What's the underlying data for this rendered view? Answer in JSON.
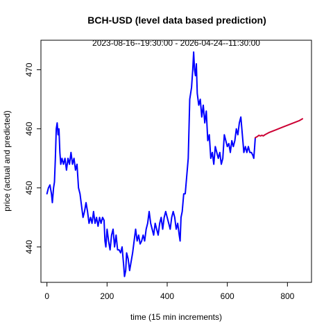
{
  "chart_data": {
    "type": "line",
    "title": "BCH-USD (level data based prediction)",
    "subtitle": "2023-08-16--19:30:00  -  2026-04-24--11:30:00",
    "xlabel": "time (15 min increments)",
    "ylabel": "price (actual and predicted)",
    "xlim": [
      -20,
      880
    ],
    "ylim": [
      434,
      475
    ],
    "x_ticks": [
      0,
      200,
      400,
      600,
      800
    ],
    "y_ticks": [
      440,
      450,
      460,
      470
    ],
    "series": [
      {
        "color": "#0000ff",
        "points": [
          [
            0,
            449
          ],
          [
            5,
            450
          ],
          [
            10,
            450.5
          ],
          [
            15,
            449
          ],
          [
            18,
            447.5
          ],
          [
            22,
            450
          ],
          [
            25,
            451
          ],
          [
            28,
            455
          ],
          [
            31,
            460
          ],
          [
            34,
            461
          ],
          [
            37,
            459
          ],
          [
            40,
            460
          ],
          [
            43,
            456
          ],
          [
            46,
            454
          ],
          [
            50,
            455
          ],
          [
            55,
            454
          ],
          [
            60,
            455
          ],
          [
            65,
            453
          ],
          [
            70,
            455
          ],
          [
            75,
            454
          ],
          [
            80,
            456
          ],
          [
            85,
            454
          ],
          [
            90,
            455
          ],
          [
            95,
            453
          ],
          [
            100,
            454
          ],
          [
            105,
            450
          ],
          [
            110,
            449
          ],
          [
            115,
            447
          ],
          [
            120,
            445
          ],
          [
            125,
            446
          ],
          [
            130,
            447.5
          ],
          [
            135,
            446
          ],
          [
            140,
            444
          ],
          [
            145,
            445
          ],
          [
            150,
            444
          ],
          [
            155,
            446
          ],
          [
            160,
            444
          ],
          [
            165,
            445
          ],
          [
            170,
            443.5
          ],
          [
            175,
            445
          ],
          [
            180,
            444
          ],
          [
            185,
            445
          ],
          [
            190,
            444.5
          ],
          [
            193,
            441
          ],
          [
            196,
            440
          ],
          [
            200,
            443
          ],
          [
            205,
            441
          ],
          [
            210,
            439.5
          ],
          [
            215,
            442
          ],
          [
            220,
            443
          ],
          [
            225,
            440
          ],
          [
            230,
            442
          ],
          [
            235,
            439.5
          ],
          [
            240,
            439.5
          ],
          [
            245,
            439
          ],
          [
            250,
            440
          ],
          [
            255,
            437
          ],
          [
            258,
            435
          ],
          [
            262,
            436
          ],
          [
            265,
            439
          ],
          [
            270,
            438
          ],
          [
            275,
            436
          ],
          [
            280,
            437.5
          ],
          [
            285,
            439
          ],
          [
            290,
            441
          ],
          [
            295,
            443
          ],
          [
            300,
            441
          ],
          [
            305,
            442
          ],
          [
            310,
            440.5
          ],
          [
            315,
            441
          ],
          [
            320,
            442
          ],
          [
            325,
            441
          ],
          [
            330,
            443
          ],
          [
            335,
            444
          ],
          [
            340,
            446
          ],
          [
            345,
            444
          ],
          [
            350,
            443
          ],
          [
            355,
            442
          ],
          [
            360,
            444
          ],
          [
            365,
            443
          ],
          [
            370,
            442
          ],
          [
            375,
            444
          ],
          [
            380,
            445
          ],
          [
            385,
            443
          ],
          [
            390,
            445
          ],
          [
            395,
            446
          ],
          [
            400,
            445
          ],
          [
            405,
            444
          ],
          [
            410,
            443
          ],
          [
            415,
            445
          ],
          [
            420,
            446
          ],
          [
            425,
            445
          ],
          [
            430,
            443
          ],
          [
            435,
            444
          ],
          [
            440,
            442
          ],
          [
            443,
            441
          ],
          [
            446,
            445
          ],
          [
            450,
            446
          ],
          [
            455,
            449
          ],
          [
            460,
            449
          ],
          [
            465,
            452
          ],
          [
            470,
            455
          ],
          [
            475,
            465
          ],
          [
            478,
            466
          ],
          [
            481,
            467
          ],
          [
            485,
            470
          ],
          [
            488,
            473
          ],
          [
            491,
            470
          ],
          [
            494,
            469
          ],
          [
            497,
            471
          ],
          [
            500,
            466
          ],
          [
            505,
            464
          ],
          [
            510,
            465
          ],
          [
            515,
            462
          ],
          [
            520,
            464
          ],
          [
            525,
            461
          ],
          [
            530,
            463
          ],
          [
            535,
            458
          ],
          [
            540,
            459
          ],
          [
            545,
            455
          ],
          [
            550,
            456
          ],
          [
            555,
            454
          ],
          [
            560,
            457
          ],
          [
            565,
            456
          ],
          [
            570,
            455
          ],
          [
            575,
            456
          ],
          [
            580,
            454
          ],
          [
            585,
            455
          ],
          [
            590,
            459
          ],
          [
            595,
            458
          ],
          [
            600,
            457
          ],
          [
            605,
            457.5
          ],
          [
            610,
            456
          ],
          [
            615,
            458
          ],
          [
            620,
            457
          ],
          [
            625,
            458
          ],
          [
            630,
            460
          ],
          [
            635,
            459
          ],
          [
            640,
            461
          ],
          [
            645,
            462
          ],
          [
            650,
            459
          ],
          [
            655,
            456
          ],
          [
            660,
            457
          ],
          [
            665,
            456
          ],
          [
            670,
            457
          ],
          [
            675,
            456
          ],
          [
            680,
            456
          ],
          [
            685,
            455.5
          ],
          [
            688,
            455
          ],
          [
            691,
            457
          ],
          [
            693,
            458.5
          ]
        ]
      },
      {
        "color": "#cc0033",
        "points": [
          [
            693,
            458.5
          ],
          [
            700,
            458.7
          ],
          [
            705,
            458.9
          ],
          [
            710,
            458.8
          ],
          [
            715,
            458.9
          ],
          [
            720,
            458.8
          ],
          [
            725,
            459
          ],
          [
            740,
            459.4
          ],
          [
            760,
            459.8
          ],
          [
            780,
            460.2
          ],
          [
            800,
            460.6
          ],
          [
            820,
            461
          ],
          [
            840,
            461.4
          ],
          [
            850,
            461.7
          ]
        ]
      }
    ],
    "grid": false,
    "legend": "none"
  },
  "colors": {
    "background": "#ffffff",
    "axis": "#000000",
    "actual_line": "#0000ff",
    "predicted_line": "#cc0033"
  }
}
